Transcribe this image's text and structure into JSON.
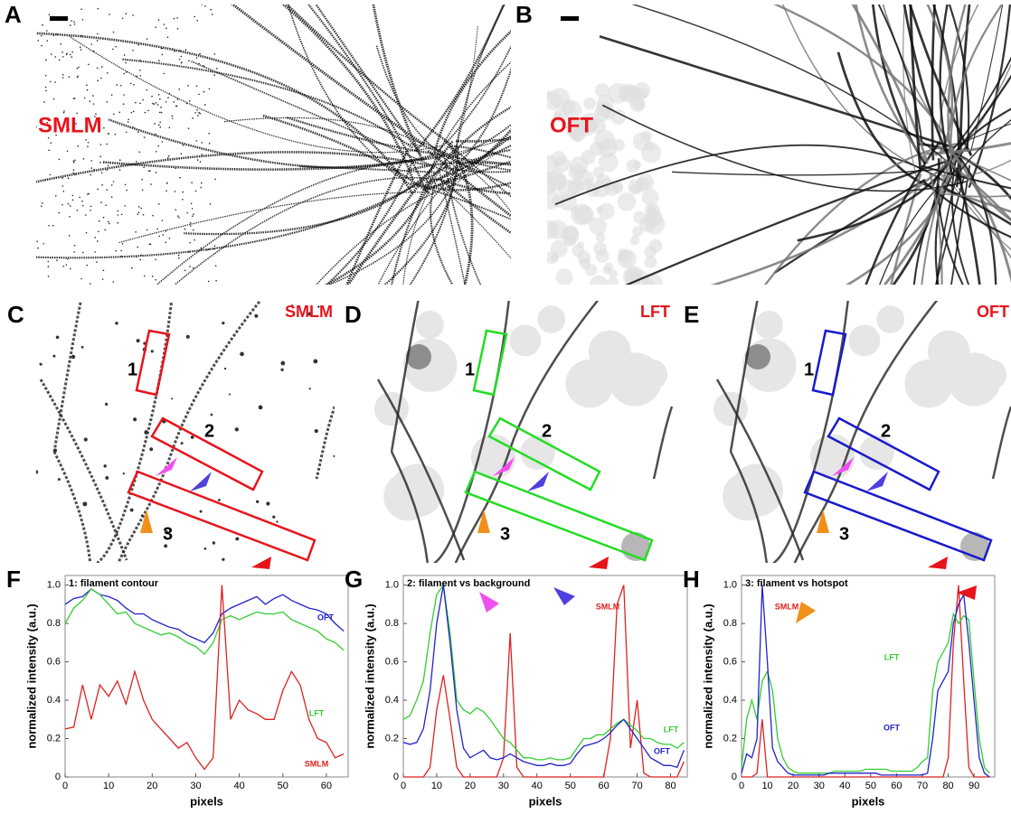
{
  "image_panels": [
    {
      "letter": "A",
      "label": "SMLM"
    },
    {
      "letter": "B",
      "label": "OFT"
    },
    {
      "letter": "C",
      "label": "SMLM"
    },
    {
      "letter": "D",
      "label": "LFT"
    },
    {
      "letter": "E",
      "label": "OFT"
    }
  ],
  "box_labels": [
    "1",
    "2",
    "3"
  ],
  "chart_data": [
    {
      "type": "line",
      "panel": "F",
      "title": "1: filament contour",
      "xlabel": "pixels",
      "ylabel": "normalized intensity (a.u.)",
      "xlim": [
        0,
        65
      ],
      "xticks": [
        0,
        10,
        20,
        30,
        40,
        50,
        60
      ],
      "ylim": [
        0,
        1.05
      ],
      "yticks": [
        0,
        0.2,
        0.4,
        0.6,
        0.8,
        {
          "value": 1,
          "label": "1.0"
        }
      ],
      "x": [
        0,
        2,
        4,
        6,
        8,
        10,
        12,
        14,
        16,
        18,
        20,
        22,
        24,
        26,
        28,
        30,
        32,
        34,
        36,
        38,
        40,
        42,
        44,
        46,
        48,
        50,
        52,
        54,
        56,
        58,
        60,
        62,
        64
      ],
      "series": [
        {
          "name": "OFT",
          "color": "#2222cc",
          "values": [
            0.9,
            0.93,
            0.94,
            0.98,
            0.95,
            0.94,
            0.92,
            0.88,
            0.85,
            0.85,
            0.82,
            0.8,
            0.78,
            0.77,
            0.74,
            0.72,
            0.7,
            0.75,
            0.85,
            0.88,
            0.9,
            0.92,
            0.94,
            0.9,
            0.93,
            0.95,
            0.92,
            0.9,
            0.88,
            0.87,
            0.85,
            0.8,
            0.76
          ]
        },
        {
          "name": "LFT",
          "color": "#33cc33",
          "values": [
            0.8,
            0.88,
            0.92,
            0.98,
            0.95,
            0.9,
            0.85,
            0.86,
            0.8,
            0.78,
            0.76,
            0.74,
            0.75,
            0.73,
            0.7,
            0.68,
            0.64,
            0.7,
            0.82,
            0.84,
            0.82,
            0.84,
            0.86,
            0.85,
            0.85,
            0.86,
            0.82,
            0.8,
            0.78,
            0.76,
            0.72,
            0.7,
            0.66
          ]
        },
        {
          "name": "SMLM",
          "color": "#dd2222",
          "values": [
            0.25,
            0.26,
            0.48,
            0.3,
            0.48,
            0.42,
            0.5,
            0.38,
            0.55,
            0.4,
            0.3,
            0.25,
            0.2,
            0.15,
            0.18,
            0.1,
            0.04,
            0.1,
            1.0,
            0.3,
            0.4,
            0.35,
            0.33,
            0.3,
            0.3,
            0.45,
            0.55,
            0.48,
            0.3,
            0.2,
            0.18,
            0.1,
            0.12
          ]
        }
      ]
    },
    {
      "type": "line",
      "panel": "G",
      "title": "2: filament vs background",
      "xlabel": "pixels",
      "ylabel": "normalized intensity (a.u.)",
      "xlim": [
        0,
        85
      ],
      "xticks": [
        0,
        10,
        20,
        30,
        40,
        50,
        60,
        70,
        80
      ],
      "ylim": [
        0,
        1.05
      ],
      "yticks": [
        0,
        0.2,
        0.4,
        0.6,
        0.8,
        {
          "value": 1,
          "label": "1.0"
        }
      ],
      "x": [
        0,
        2,
        4,
        6,
        8,
        10,
        12,
        14,
        16,
        18,
        20,
        22,
        24,
        26,
        28,
        30,
        32,
        34,
        36,
        38,
        40,
        42,
        44,
        46,
        48,
        50,
        52,
        54,
        56,
        58,
        60,
        62,
        64,
        66,
        68,
        70,
        72,
        74,
        76,
        78,
        80,
        82,
        84
      ],
      "series": [
        {
          "name": "SMLM",
          "color": "#dd2222",
          "values": [
            0,
            0,
            0,
            0,
            0.05,
            0.35,
            0.53,
            0.3,
            0.05,
            0,
            0,
            0,
            0,
            0,
            0,
            0.1,
            0.75,
            0.05,
            0,
            0,
            0,
            0,
            0,
            0,
            0,
            0,
            0,
            0,
            0,
            0,
            0,
            0.2,
            0.9,
            1.0,
            0.15,
            0.4,
            0.02,
            0,
            0,
            0,
            0,
            0,
            0.08
          ]
        },
        {
          "name": "LFT",
          "color": "#33cc33",
          "values": [
            0.3,
            0.32,
            0.4,
            0.5,
            0.75,
            0.95,
            1.0,
            0.75,
            0.4,
            0.35,
            0.33,
            0.36,
            0.34,
            0.3,
            0.25,
            0.2,
            0.18,
            0.14,
            0.1,
            0.1,
            0.09,
            0.09,
            0.1,
            0.09,
            0.09,
            0.1,
            0.15,
            0.2,
            0.2,
            0.22,
            0.22,
            0.25,
            0.28,
            0.3,
            0.27,
            0.24,
            0.2,
            0.2,
            0.18,
            0.17,
            0.17,
            0.15,
            0.18
          ]
        },
        {
          "name": "OFT",
          "color": "#2222cc",
          "values": [
            0.18,
            0.17,
            0.18,
            0.25,
            0.45,
            0.8,
            1.0,
            0.7,
            0.35,
            0.15,
            0.1,
            0.12,
            0.14,
            0.1,
            0.09,
            0.1,
            0.12,
            0.1,
            0.08,
            0.07,
            0.06,
            0.06,
            0.07,
            0.06,
            0.06,
            0.07,
            0.12,
            0.16,
            0.17,
            0.18,
            0.2,
            0.23,
            0.27,
            0.3,
            0.25,
            0.2,
            0.15,
            0.1,
            0.08,
            0.06,
            0.06,
            0.05,
            0.14
          ]
        }
      ]
    },
    {
      "type": "line",
      "panel": "H",
      "title": "3: filament vs hotspot",
      "xlabel": "pixels",
      "ylabel": "normalized intensity (a.u.)",
      "xlim": [
        0,
        98
      ],
      "xticks": [
        0,
        10,
        20,
        30,
        40,
        50,
        60,
        70,
        80,
        90
      ],
      "ylim": [
        0,
        1.05
      ],
      "yticks": [
        0,
        0.2,
        0.4,
        0.6,
        0.8,
        {
          "value": 1,
          "label": "1.0"
        }
      ],
      "x": [
        0,
        2,
        4,
        6,
        8,
        10,
        12,
        14,
        16,
        18,
        20,
        22,
        24,
        26,
        28,
        30,
        32,
        34,
        36,
        38,
        40,
        42,
        44,
        46,
        48,
        50,
        52,
        54,
        56,
        58,
        60,
        62,
        64,
        66,
        68,
        70,
        72,
        74,
        76,
        78,
        80,
        82,
        84,
        86,
        88,
        90,
        92,
        94,
        96
      ],
      "series": [
        {
          "name": "SMLM",
          "color": "#dd2222",
          "values": [
            0,
            0,
            0,
            0.02,
            0.3,
            0,
            0,
            0,
            0,
            0,
            0,
            0,
            0,
            0,
            0,
            0,
            0,
            0,
            0,
            0,
            0,
            0,
            0,
            0,
            0,
            0,
            0,
            0,
            0,
            0,
            0,
            0,
            0,
            0,
            0,
            0,
            0,
            0,
            0,
            0,
            0.1,
            0.7,
            1.0,
            0.5,
            0.05,
            0,
            0,
            0,
            0
          ]
        },
        {
          "name": "LFT",
          "color": "#33cc33",
          "values": [
            0.05,
            0.3,
            0.4,
            0.3,
            0.5,
            0.55,
            0.45,
            0.2,
            0.1,
            0.05,
            0.03,
            0.02,
            0.02,
            0.02,
            0.02,
            0.02,
            0.02,
            0.02,
            0.03,
            0.03,
            0.03,
            0.03,
            0.03,
            0.03,
            0.04,
            0.04,
            0.04,
            0.04,
            0.04,
            0.03,
            0.03,
            0.03,
            0.03,
            0.03,
            0.05,
            0.08,
            0.1,
            0.45,
            0.6,
            0.65,
            0.7,
            0.85,
            0.8,
            0.84,
            0.82,
            0.5,
            0.2,
            0.05,
            0.02
          ]
        },
        {
          "name": "OFT",
          "color": "#2222cc",
          "values": [
            0.02,
            0.12,
            0.1,
            0.2,
            1.0,
            0.6,
            0.15,
            0.08,
            0.05,
            0.02,
            0.01,
            0.01,
            0.01,
            0.01,
            0.01,
            0.01,
            0.01,
            0.02,
            0.02,
            0.02,
            0.02,
            0.02,
            0.02,
            0.02,
            0.02,
            0.02,
            0.02,
            0.01,
            0.01,
            0.01,
            0.01,
            0.01,
            0.01,
            0.01,
            0.01,
            0.01,
            0.02,
            0.2,
            0.45,
            0.5,
            0.55,
            0.8,
            0.9,
            0.95,
            0.7,
            0.4,
            0.1,
            0.02,
            0
          ]
        }
      ]
    }
  ]
}
